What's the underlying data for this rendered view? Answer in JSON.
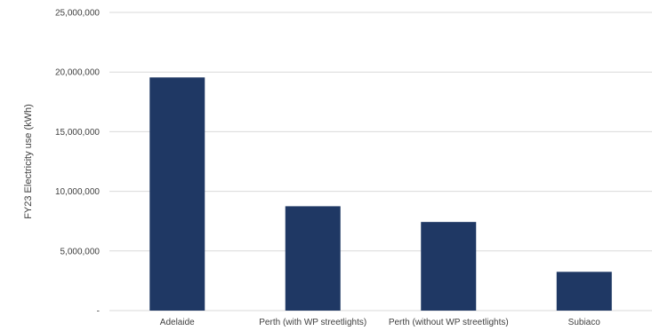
{
  "chart_data": {
    "type": "bar",
    "title": "",
    "xlabel": "",
    "ylabel": "FY23 Electricity use  (kWh)",
    "categories": [
      "Adelaide",
      "Perth (with WP streetlights)",
      "Perth (without WP streetlights)",
      "Subiaco"
    ],
    "series": [
      {
        "values": [
          19550000,
          8750000,
          7430000,
          3250000
        ]
      }
    ],
    "ylim": [
      0,
      25000000
    ],
    "yticks": [
      0,
      5000000,
      10000000,
      15000000,
      20000000,
      25000000
    ],
    "ytick_labels": [
      "-",
      "5,000,000",
      "10,000,000",
      "15,000,000",
      "20,000,000",
      "25,000,000"
    ],
    "grid": true,
    "legend": "none",
    "colors": {
      "bar": "#1f3864",
      "grid": "#d9d9d9",
      "text": "#404040"
    }
  }
}
